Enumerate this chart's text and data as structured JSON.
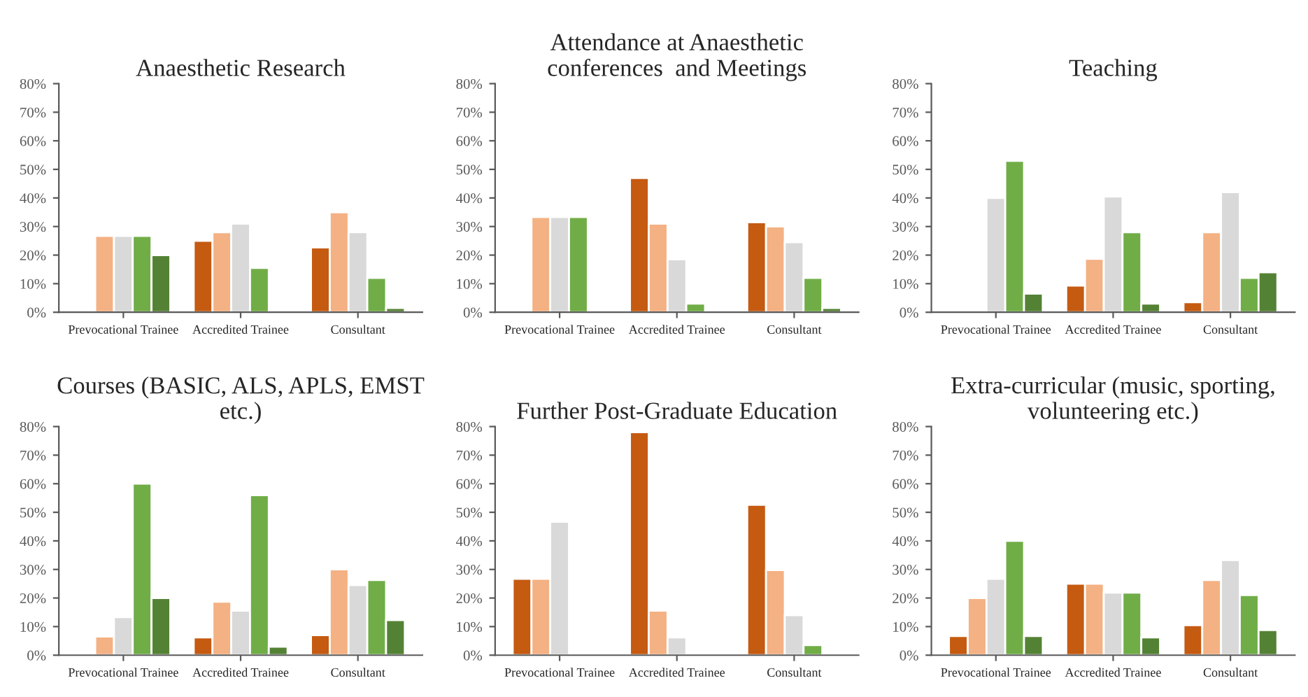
{
  "chart_data": [
    {
      "type": "bar",
      "title": "Anaesthetic Research",
      "categories": [
        "Prevocational Trainee",
        "Accredited Trainee",
        "Consultant"
      ],
      "ylim": [
        0,
        80
      ],
      "yticks": [
        {
          "value": 0,
          "label": "0%"
        },
        {
          "value": 10,
          "label": "10%"
        },
        {
          "value": 20,
          "label": "20%"
        },
        {
          "value": 30,
          "label": "30%"
        },
        {
          "value": 40,
          "label": "40%"
        },
        {
          "value": 50,
          "label": "50%"
        },
        {
          "value": 60,
          "label": "60%"
        },
        {
          "value": 70,
          "label": "70%"
        },
        {
          "value": 80,
          "label": "80%"
        }
      ],
      "grid": false,
      "legend": false,
      "series": [
        {
          "color": "#c55a11",
          "values": [
            null,
            25,
            22.7
          ]
        },
        {
          "color": "#f4b183",
          "values": [
            26.7,
            28,
            35
          ]
        },
        {
          "color": "#d9d9d9",
          "values": [
            26.7,
            31,
            28
          ]
        },
        {
          "color": "#70ad47",
          "values": [
            26.7,
            15.5,
            12
          ]
        },
        {
          "color": "#548235",
          "values": [
            20,
            null,
            1.5
          ]
        }
      ]
    },
    {
      "type": "bar",
      "title": "Attendance at Anaesthetic\nconferences  and Meetings",
      "categories": [
        "Prevocational Trainee",
        "Accredited Trainee",
        "Consultant"
      ],
      "ylim": [
        0,
        80
      ],
      "yticks": [
        {
          "value": 0,
          "label": "0%"
        },
        {
          "value": 10,
          "label": "10%"
        },
        {
          "value": 20,
          "label": "20%"
        },
        {
          "value": 30,
          "label": "30%"
        },
        {
          "value": 40,
          "label": "40%"
        },
        {
          "value": 50,
          "label": "50%"
        },
        {
          "value": 60,
          "label": "60%"
        },
        {
          "value": 70,
          "label": "70%"
        },
        {
          "value": 80,
          "label": "80%"
        }
      ],
      "grid": false,
      "legend": false,
      "series": [
        {
          "color": "#c55a11",
          "values": [
            null,
            47,
            31.5
          ]
        },
        {
          "color": "#f4b183",
          "values": [
            33.3,
            31,
            30
          ]
        },
        {
          "color": "#d9d9d9",
          "values": [
            33.3,
            18.5,
            24.5
          ]
        },
        {
          "color": "#70ad47",
          "values": [
            33.3,
            3,
            12
          ]
        },
        {
          "color": "#548235",
          "values": [
            null,
            null,
            1.5
          ]
        }
      ]
    },
    {
      "type": "bar",
      "title": "Teaching",
      "categories": [
        "Prevocational Trainee",
        "Accredited Trainee",
        "Consultant"
      ],
      "ylim": [
        0,
        80
      ],
      "yticks": [
        {
          "value": 0,
          "label": "0%"
        },
        {
          "value": 10,
          "label": "10%"
        },
        {
          "value": 20,
          "label": "20%"
        },
        {
          "value": 30,
          "label": "30%"
        },
        {
          "value": 40,
          "label": "40%"
        },
        {
          "value": 50,
          "label": "50%"
        },
        {
          "value": 60,
          "label": "60%"
        },
        {
          "value": 70,
          "label": "70%"
        },
        {
          "value": 80,
          "label": "80%"
        }
      ],
      "grid": false,
      "legend": false,
      "series": [
        {
          "color": "#c55a11",
          "values": [
            null,
            9.3,
            3.5
          ]
        },
        {
          "color": "#f4b183",
          "values": [
            null,
            18.7,
            28
          ]
        },
        {
          "color": "#d9d9d9",
          "values": [
            40,
            40.5,
            42
          ]
        },
        {
          "color": "#70ad47",
          "values": [
            53,
            28,
            12
          ]
        },
        {
          "color": "#548235",
          "values": [
            6.5,
            3,
            14
          ]
        }
      ]
    },
    {
      "type": "bar",
      "title": "Courses (BASIC, ALS, APLS, EMST\netc.)",
      "categories": [
        "Prevocational Trainee",
        "Accredited Trainee",
        "Consultant"
      ],
      "ylim": [
        0,
        80
      ],
      "yticks": [
        {
          "value": 0,
          "label": "0%"
        },
        {
          "value": 10,
          "label": "10%"
        },
        {
          "value": 20,
          "label": "20%"
        },
        {
          "value": 30,
          "label": "30%"
        },
        {
          "value": 40,
          "label": "40%"
        },
        {
          "value": 50,
          "label": "50%"
        },
        {
          "value": 60,
          "label": "60%"
        },
        {
          "value": 70,
          "label": "70%"
        },
        {
          "value": 80,
          "label": "80%"
        }
      ],
      "grid": false,
      "legend": false,
      "series": [
        {
          "color": "#c55a11",
          "values": [
            null,
            6.2,
            7
          ]
        },
        {
          "color": "#f4b183",
          "values": [
            6.5,
            18.7,
            30
          ]
        },
        {
          "color": "#d9d9d9",
          "values": [
            13.3,
            15.6,
            24.5
          ]
        },
        {
          "color": "#70ad47",
          "values": [
            60,
            56,
            26.3
          ]
        },
        {
          "color": "#548235",
          "values": [
            20,
            3,
            12.3
          ]
        }
      ]
    },
    {
      "type": "bar",
      "title": "Further Post-Graduate Education",
      "categories": [
        "Prevocational Trainee",
        "Accredited Trainee",
        "Consultant"
      ],
      "ylim": [
        0,
        80
      ],
      "yticks": [
        {
          "value": 0,
          "label": "0%"
        },
        {
          "value": 10,
          "label": "10%"
        },
        {
          "value": 20,
          "label": "20%"
        },
        {
          "value": 30,
          "label": "30%"
        },
        {
          "value": 40,
          "label": "40%"
        },
        {
          "value": 50,
          "label": "50%"
        },
        {
          "value": 60,
          "label": "60%"
        },
        {
          "value": 70,
          "label": "70%"
        },
        {
          "value": 80,
          "label": "80%"
        }
      ],
      "grid": false,
      "legend": false,
      "series": [
        {
          "color": "#c55a11",
          "values": [
            26.7,
            78,
            52.6
          ]
        },
        {
          "color": "#f4b183",
          "values": [
            26.7,
            15.6,
            29.8
          ]
        },
        {
          "color": "#d9d9d9",
          "values": [
            46.7,
            6.2,
            14
          ]
        },
        {
          "color": "#70ad47",
          "values": [
            null,
            null,
            3.5
          ]
        },
        {
          "color": "#548235",
          "values": [
            null,
            null,
            null
          ]
        }
      ]
    },
    {
      "type": "bar",
      "title": "Extra-curricular (music, sporting,\nvolunteering etc.)",
      "categories": [
        "Prevocational Trainee",
        "Accredited Trainee",
        "Consultant"
      ],
      "ylim": [
        0,
        80
      ],
      "yticks": [
        {
          "value": 0,
          "label": "0%"
        },
        {
          "value": 10,
          "label": "10%"
        },
        {
          "value": 20,
          "label": "20%"
        },
        {
          "value": 30,
          "label": "30%"
        },
        {
          "value": 40,
          "label": "40%"
        },
        {
          "value": 50,
          "label": "50%"
        },
        {
          "value": 60,
          "label": "60%"
        },
        {
          "value": 70,
          "label": "70%"
        },
        {
          "value": 80,
          "label": "80%"
        }
      ],
      "grid": false,
      "legend": false,
      "series": [
        {
          "color": "#c55a11",
          "values": [
            6.7,
            25,
            10.5
          ]
        },
        {
          "color": "#f4b183",
          "values": [
            20,
            25,
            26.3
          ]
        },
        {
          "color": "#d9d9d9",
          "values": [
            26.7,
            21.9,
            33.3
          ]
        },
        {
          "color": "#70ad47",
          "values": [
            40,
            21.9,
            21
          ]
        },
        {
          "color": "#548235",
          "values": [
            6.7,
            6.2,
            8.8
          ]
        }
      ]
    }
  ]
}
